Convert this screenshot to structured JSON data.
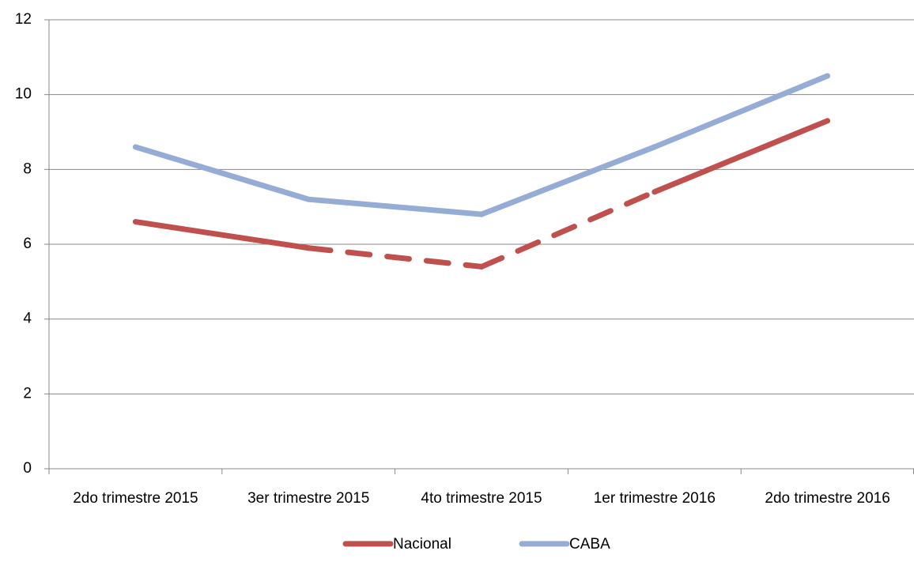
{
  "chart_data": {
    "type": "line",
    "categories": [
      "2do trimestre 2015",
      "3er trimestre 2015",
      "4to trimestre 2015",
      "1er trimestre 2016",
      "2do trimestre 2016"
    ],
    "series": [
      {
        "name": "Nacional",
        "color": "#c0504d",
        "values": [
          6.6,
          5.9,
          5.4,
          7.4,
          9.3
        ],
        "dash_segments": [
          1,
          2
        ]
      },
      {
        "name": "CABA",
        "color": "#95acd4",
        "values": [
          8.6,
          7.2,
          6.8,
          8.6,
          10.5
        ]
      }
    ],
    "ylim": [
      0,
      12
    ],
    "yticks": [
      0,
      2,
      4,
      6,
      8,
      10,
      12
    ],
    "grid": true,
    "legend": "bottom"
  }
}
